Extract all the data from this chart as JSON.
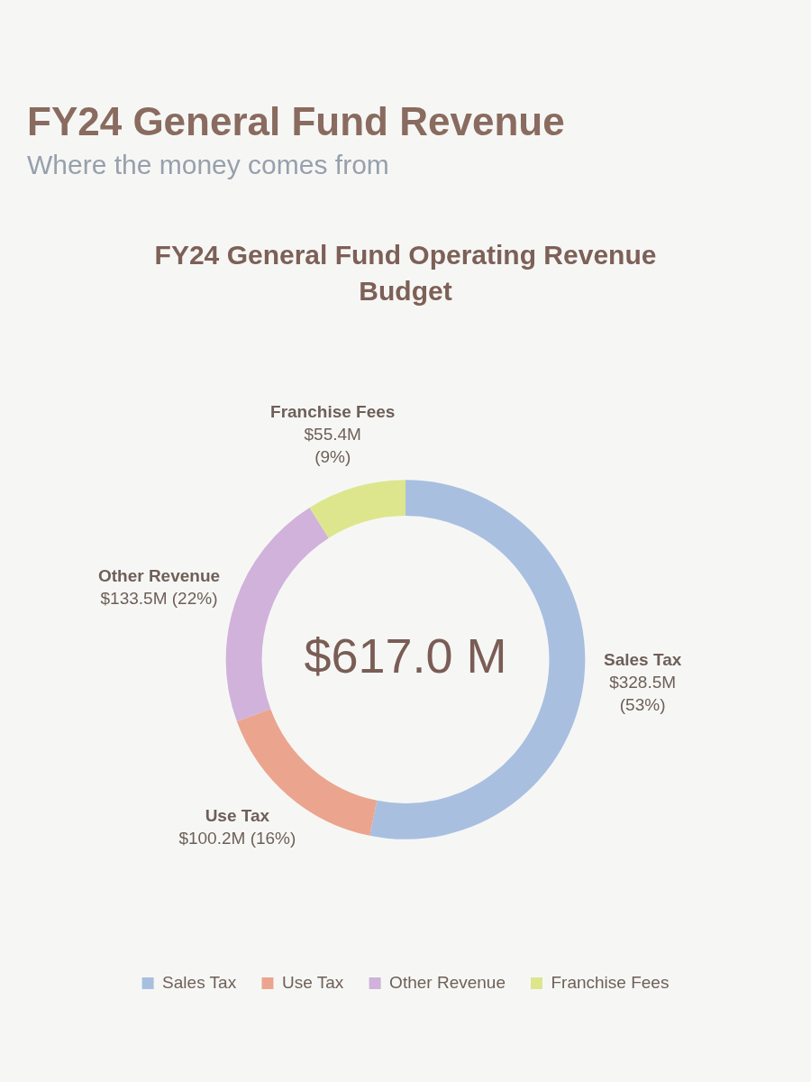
{
  "chart_data": {
    "type": "donut",
    "title": "FY24 General Fund Revenue",
    "subtitle": "Where the money comes from",
    "categories": [
      "Sales Tax",
      "Use Tax",
      "Other Revenue",
      "Franchise Fees"
    ],
    "values": [
      328500000,
      100200000,
      133500000,
      55400000
    ],
    "colors": [
      "#a9bfe0",
      "#eba58e",
      "#d0b2db",
      "#dde68c"
    ],
    "value_labels": [
      "$328.5M (53%)",
      "$100.2M (16%)",
      "$133.5M (22%)",
      "$55.4M (9%)"
    ],
    "annotations": [
      "FY24 General Fund Operating Revenue Budget",
      "$617.0 M"
    ],
    "legend": "bottom"
  }
}
